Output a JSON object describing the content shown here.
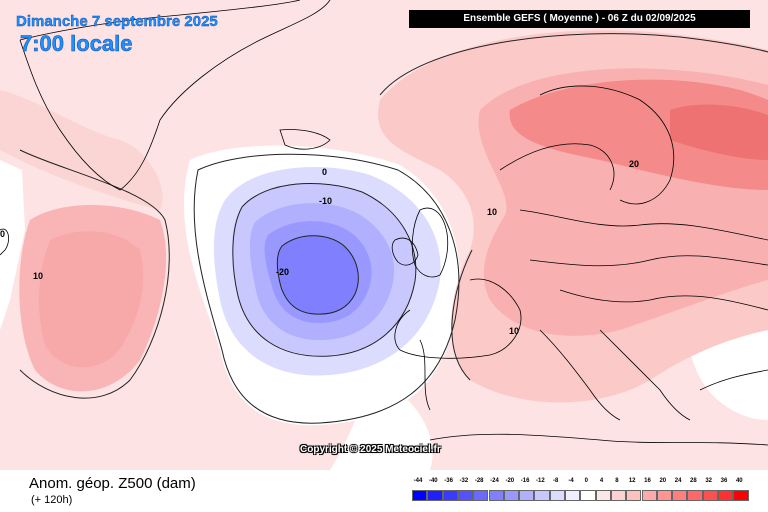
{
  "header": {
    "date": "Dimanche 7 septembre 2025",
    "time": "7:00 locale",
    "run": "Ensemble GEFS  ( Moyenne )  -  06 Z du 02/09/2025"
  },
  "map": {
    "contour_labels": [
      {
        "text": "0"
      },
      {
        "text": "-10"
      },
      {
        "text": "-20"
      },
      {
        "text": "10"
      },
      {
        "text": "10"
      },
      {
        "text": "10"
      },
      {
        "text": "20"
      },
      {
        "text": "0"
      }
    ],
    "copyright": "Copyright © 2025 Meteociel.fr"
  },
  "footer": {
    "parameter": "Anom. géop. Z500 (dam)",
    "lead_time": "(+ 120h)"
  },
  "legend": {
    "labels": [
      "-44",
      "-40",
      "-36",
      "-32",
      "-28",
      "-24",
      "-20",
      "-16",
      "-12",
      "-8",
      "-4",
      "0",
      "4",
      "8",
      "12",
      "16",
      "20",
      "24",
      "28",
      "32",
      "36",
      "40"
    ],
    "colors": [
      "#0000ff",
      "#2020ff",
      "#3b3bff",
      "#5252ff",
      "#6a6aff",
      "#8080ff",
      "#9898ff",
      "#b0b0ff",
      "#c8c8ff",
      "#dcdcff",
      "#eeeeff",
      "#ffffff",
      "#ffe6e6",
      "#ffd2d2",
      "#ffc0c0",
      "#ffaaaa",
      "#ff9494",
      "#ff7e7e",
      "#ff6868",
      "#ff5050",
      "#ff3030",
      "#ff0000"
    ]
  },
  "colors": {
    "title": "#1e90ff",
    "run_box": "#000000"
  }
}
